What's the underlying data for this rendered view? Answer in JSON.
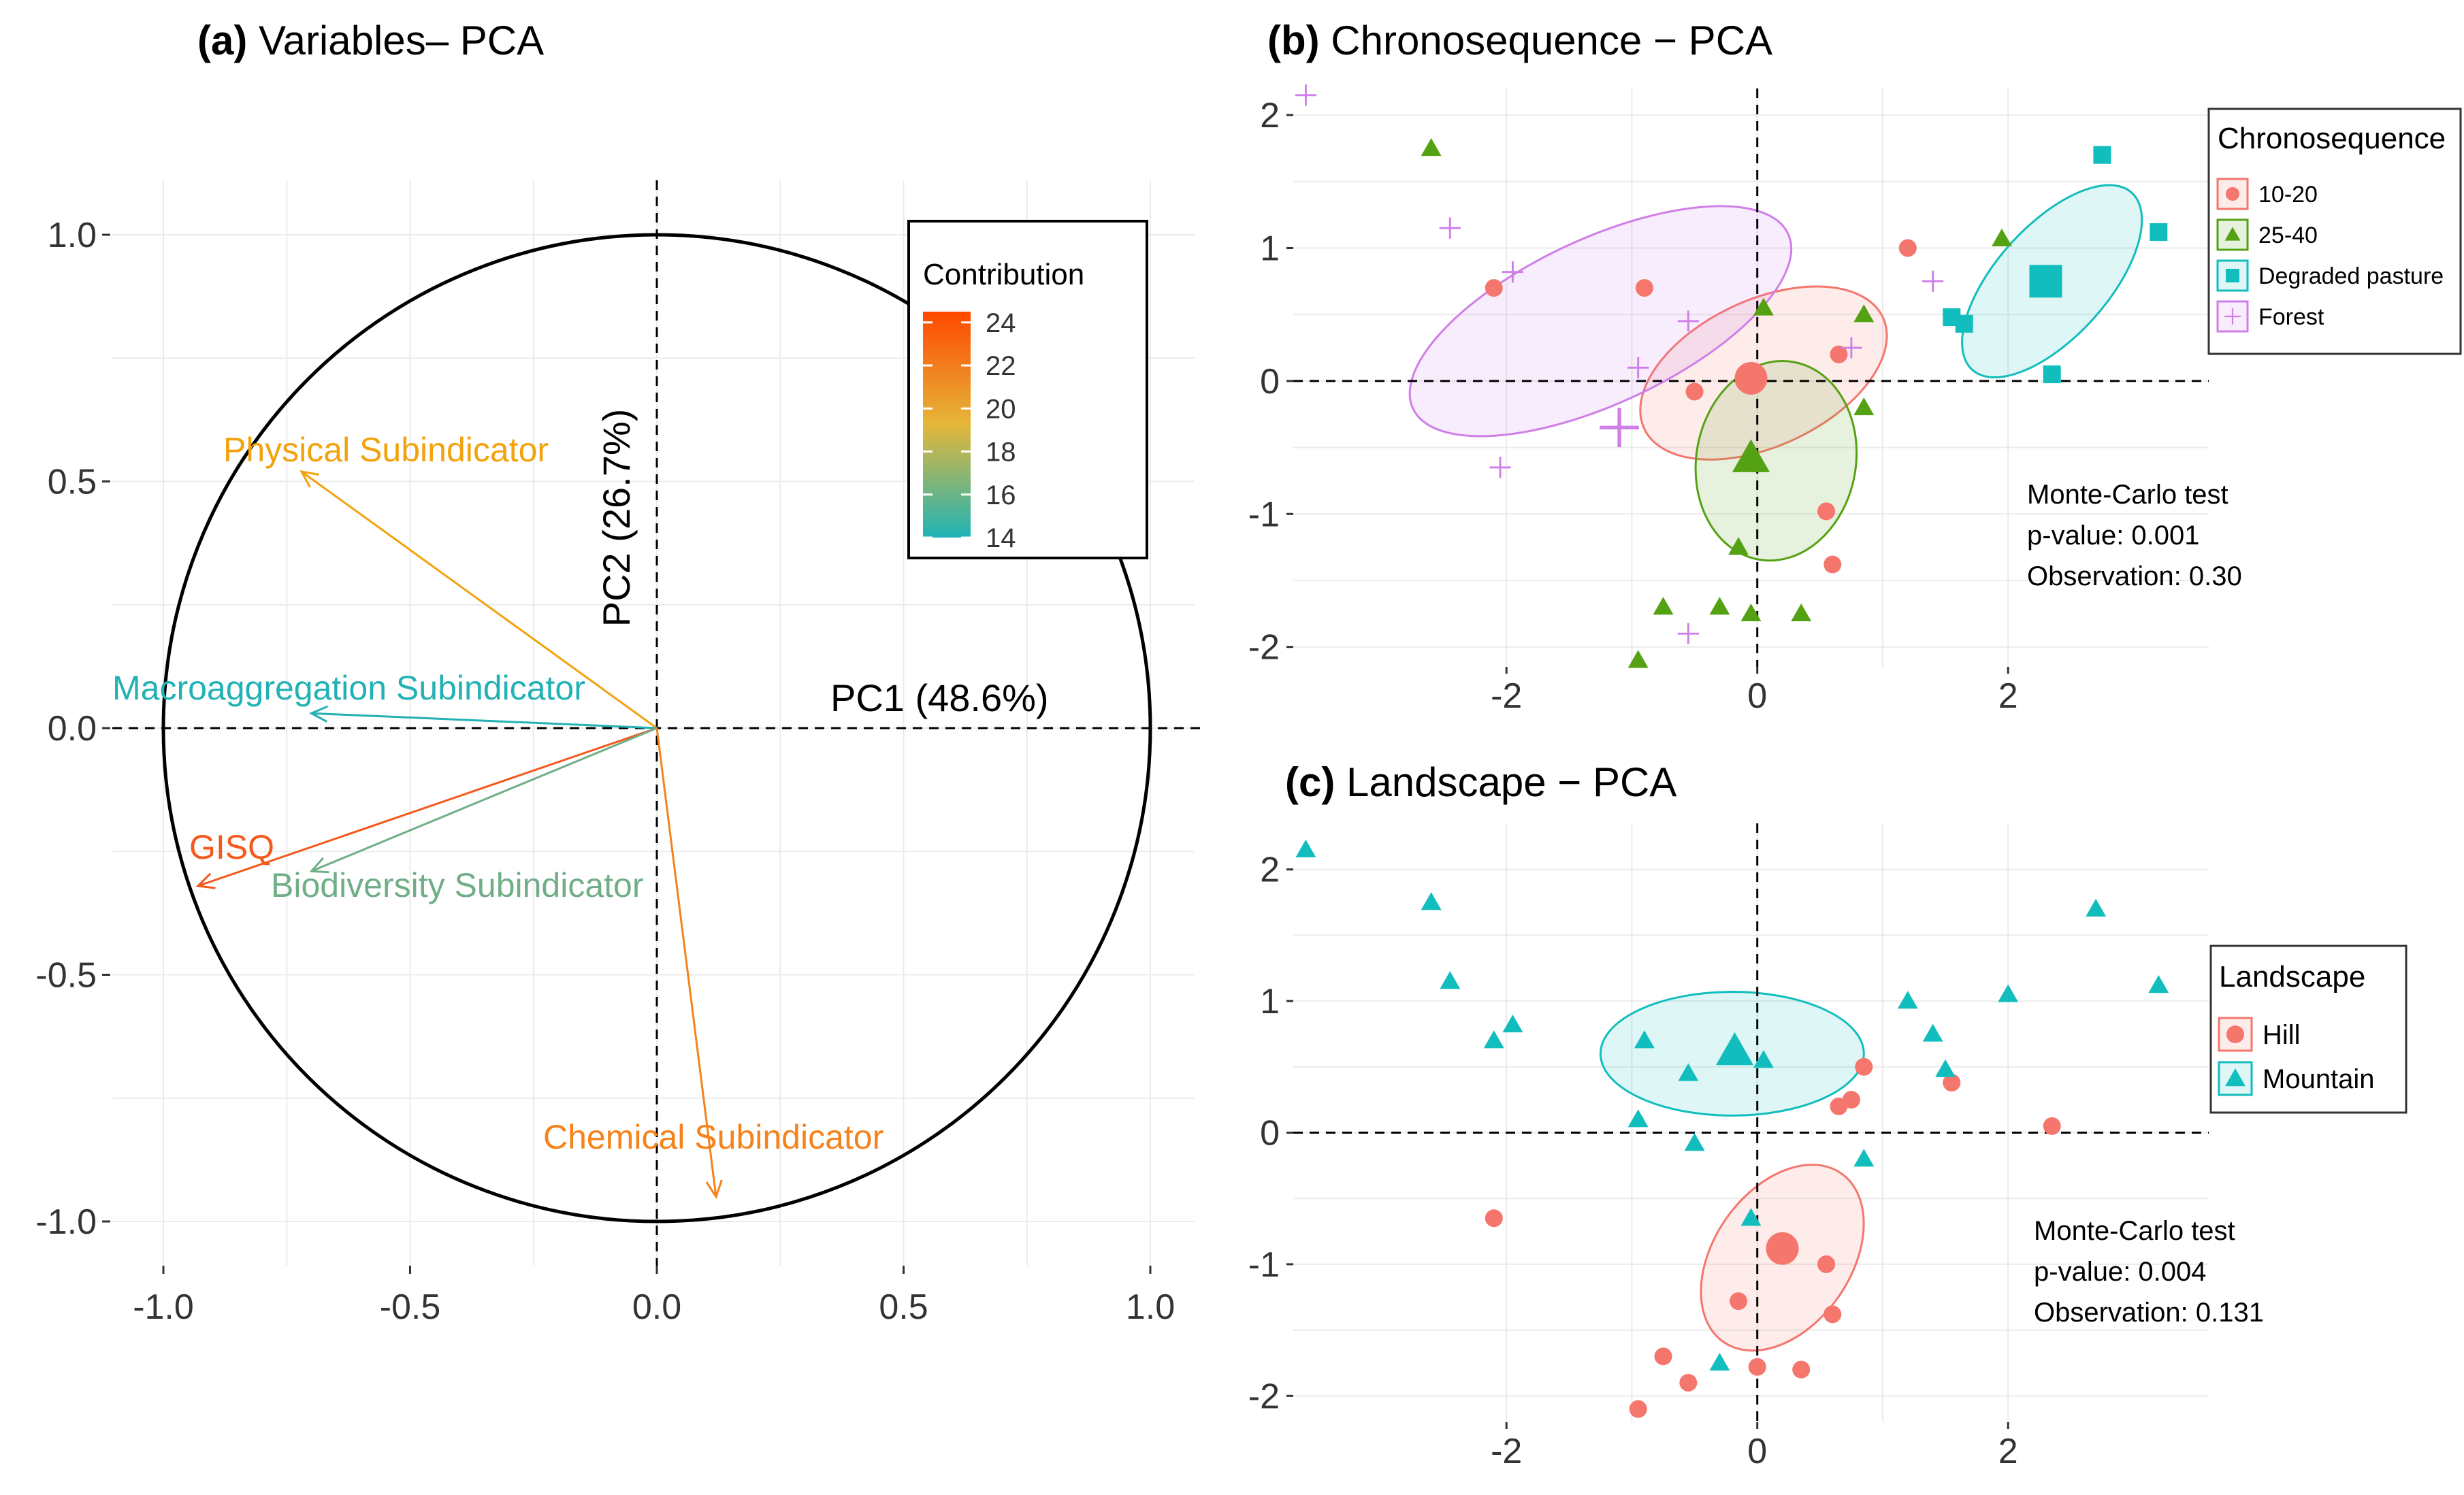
{
  "chart_data": [
    {
      "id": "a",
      "type": "pca-variables",
      "title_tag": "(a)",
      "title_text": "Variables– PCA",
      "xlim": [
        -1.0,
        1.0
      ],
      "ylim": [
        -1.0,
        1.0
      ],
      "x_ticks": [
        {
          "v": -1.0,
          "label": "-1.0"
        },
        {
          "v": -0.5,
          "label": "-0.5"
        },
        {
          "v": 0.0,
          "label": "0.0"
        },
        {
          "v": 0.5,
          "label": "0.5"
        },
        {
          "v": 1.0,
          "label": "1.0"
        }
      ],
      "y_ticks": [
        {
          "v": 1.0,
          "label": "1.0"
        },
        {
          "v": 0.5,
          "label": "0.5"
        },
        {
          "v": 0.0,
          "label": "0.0"
        },
        {
          "v": -0.5,
          "label": "-0.5"
        },
        {
          "v": -1.0,
          "label": "-1.0"
        }
      ],
      "pc1_label": "PC1 (48.6%)",
      "pc2_label": "PC2 (26.7%)",
      "variables": [
        {
          "name": "Physical Subindicator",
          "x": -0.72,
          "y": 0.52,
          "contribution": 20.5,
          "color": "#f2a20d"
        },
        {
          "name": "Macroaggregation Subindicator",
          "x": -0.7,
          "y": 0.03,
          "contribution": 14.0,
          "color": "#22b1b4"
        },
        {
          "name": "GISQ",
          "x": -0.93,
          "y": -0.32,
          "contribution": 24.5,
          "color": "#f4581b"
        },
        {
          "name": "Biodiversity Subindicator",
          "x": -0.7,
          "y": -0.29,
          "contribution": 16.2,
          "color": "#6fae86"
        },
        {
          "name": "Chemical Subindicator",
          "x": 0.12,
          "y": -0.95,
          "contribution": 22.5,
          "color": "#f5821a"
        }
      ],
      "legend": {
        "title": "Contribution",
        "ticks": [
          "24",
          "22",
          "20",
          "18",
          "16",
          "14"
        ],
        "range": [
          14,
          24.5
        ],
        "colors": [
          "#1fb3b6",
          "#e4b73a",
          "#ff4800"
        ]
      }
    },
    {
      "id": "b",
      "type": "scatter",
      "title_tag": "(b)",
      "title_text": "Chronosequence − PCA",
      "xlim": [
        -3.7,
        3.6
      ],
      "ylim": [
        -2.15,
        2.2
      ],
      "x_ticks": [
        {
          "v": -2,
          "label": "-2"
        },
        {
          "v": 0,
          "label": "0"
        },
        {
          "v": 2,
          "label": "2"
        }
      ],
      "y_ticks": [
        {
          "v": 2,
          "label": "2"
        },
        {
          "v": 1,
          "label": "1"
        },
        {
          "v": 0,
          "label": "0"
        },
        {
          "v": -1,
          "label": "-1"
        },
        {
          "v": -2,
          "label": "-2"
        }
      ],
      "legend_title": "Chronosequence",
      "groups": [
        {
          "name": "10-20",
          "color": "#f4766d",
          "shape": "circle",
          "points": [
            [
              -2.1,
              0.7
            ],
            [
              -0.9,
              0.7
            ],
            [
              -0.5,
              -0.08
            ],
            [
              0.65,
              0.2
            ],
            [
              0.55,
              -0.98
            ],
            [
              0.6,
              -1.38
            ],
            [
              1.2,
              1.0
            ]
          ],
          "centroid": [
            -0.05,
            0.02
          ],
          "ellipse": {
            "cx": 0.05,
            "cy": 0.06,
            "rx": 1.05,
            "ry": 0.55,
            "angle": -25
          }
        },
        {
          "name": "25-40",
          "color": "#55a114",
          "shape": "triangle",
          "points": [
            [
              -2.6,
              1.75
            ],
            [
              -0.95,
              -2.1
            ],
            [
              -0.75,
              -1.7
            ],
            [
              -0.3,
              -1.7
            ],
            [
              -0.05,
              -1.75
            ],
            [
              0.35,
              -1.75
            ],
            [
              -0.15,
              -1.25
            ],
            [
              0.05,
              0.55
            ],
            [
              0.85,
              0.5
            ],
            [
              0.85,
              -0.2
            ],
            [
              1.95,
              1.07
            ]
          ],
          "centroid": [
            -0.05,
            -0.58
          ],
          "ellipse": {
            "cx": 0.15,
            "cy": -0.6,
            "rx": 0.8,
            "ry": 0.6,
            "angle": 100
          }
        },
        {
          "name": "Degraded pasture",
          "color": "#12bdbd",
          "shape": "square",
          "points": [
            [
              2.75,
              1.7
            ],
            [
              3.2,
              1.12
            ],
            [
              1.55,
              0.48
            ],
            [
              1.65,
              0.43
            ],
            [
              2.35,
              0.05
            ]
          ],
          "centroid": [
            2.3,
            0.75
          ],
          "ellipse": {
            "cx": 2.35,
            "cy": 0.75,
            "rx": 0.95,
            "ry": 0.42,
            "angle": -48
          }
        },
        {
          "name": "Forest",
          "color": "#d07ee8",
          "shape": "plus",
          "points": [
            [
              -3.6,
              2.15
            ],
            [
              -2.45,
              1.15
            ],
            [
              -1.95,
              0.82
            ],
            [
              -2.05,
              -0.65
            ],
            [
              -0.95,
              0.1
            ],
            [
              -0.55,
              0.45
            ],
            [
              -0.55,
              -1.9
            ],
            [
              0.75,
              0.25
            ],
            [
              1.4,
              0.75
            ]
          ],
          "centroid": [
            -1.1,
            -0.35
          ],
          "ellipse": {
            "cx": -1.25,
            "cy": 0.45,
            "rx": 1.65,
            "ry": 0.62,
            "angle": -25
          }
        }
      ],
      "annotation": [
        "Monte-Carlo test",
        "p-value: 0.001",
        "Observation: 0.30"
      ]
    },
    {
      "id": "c",
      "type": "scatter",
      "title_tag": "(c)",
      "title_text": "Landscape − PCA",
      "xlim": [
        -3.7,
        3.6
      ],
      "ylim": [
        -2.2,
        2.35
      ],
      "x_ticks": [
        {
          "v": -2,
          "label": "-2"
        },
        {
          "v": 0,
          "label": "0"
        },
        {
          "v": 2,
          "label": "2"
        }
      ],
      "y_ticks": [
        {
          "v": 2,
          "label": "2"
        },
        {
          "v": 1,
          "label": "1"
        },
        {
          "v": 0,
          "label": "0"
        },
        {
          "v": -1,
          "label": "-1"
        },
        {
          "v": -2,
          "label": "-2"
        }
      ],
      "legend_title": "Landscape",
      "groups": [
        {
          "name": "Hill",
          "color": "#f4766d",
          "shape": "circle",
          "points": [
            [
              -2.1,
              -0.65
            ],
            [
              -0.95,
              -2.1
            ],
            [
              -0.75,
              -1.7
            ],
            [
              -0.55,
              -1.9
            ],
            [
              0.0,
              -1.78
            ],
            [
              0.35,
              -1.8
            ],
            [
              -0.15,
              -1.28
            ],
            [
              0.6,
              -1.38
            ],
            [
              0.55,
              -1.0
            ],
            [
              0.85,
              0.5
            ],
            [
              0.65,
              0.2
            ],
            [
              0.75,
              0.25
            ],
            [
              1.55,
              0.38
            ],
            [
              2.35,
              0.05
            ]
          ],
          "centroid": [
            0.2,
            -0.88
          ],
          "ellipse": {
            "cx": 0.2,
            "cy": -0.95,
            "rx": 0.82,
            "ry": 0.52,
            "angle": -55
          }
        },
        {
          "name": "Mountain",
          "color": "#12bdbd",
          "shape": "triangle",
          "points": [
            [
              -3.6,
              2.15
            ],
            [
              -2.6,
              1.75
            ],
            [
              -2.45,
              1.15
            ],
            [
              -2.1,
              0.7
            ],
            [
              -1.95,
              0.82
            ],
            [
              -0.9,
              0.7
            ],
            [
              -0.55,
              0.45
            ],
            [
              0.05,
              0.55
            ],
            [
              -0.95,
              0.1
            ],
            [
              -0.5,
              -0.08
            ],
            [
              0.85,
              -0.2
            ],
            [
              1.2,
              1.0
            ],
            [
              1.4,
              0.75
            ],
            [
              1.5,
              0.48
            ],
            [
              2.0,
              1.05
            ],
            [
              2.7,
              1.7
            ],
            [
              3.2,
              1.12
            ],
            [
              -0.05,
              -0.65
            ],
            [
              -0.3,
              -1.75
            ]
          ],
          "centroid": [
            -0.18,
            0.62
          ],
          "ellipse": {
            "cx": -0.2,
            "cy": 0.6,
            "rx": 1.05,
            "ry": 0.47,
            "angle": 0
          }
        }
      ],
      "annotation": [
        "Monte-Carlo test",
        "p-value: 0.004",
        "Observation: 0.131"
      ]
    }
  ]
}
